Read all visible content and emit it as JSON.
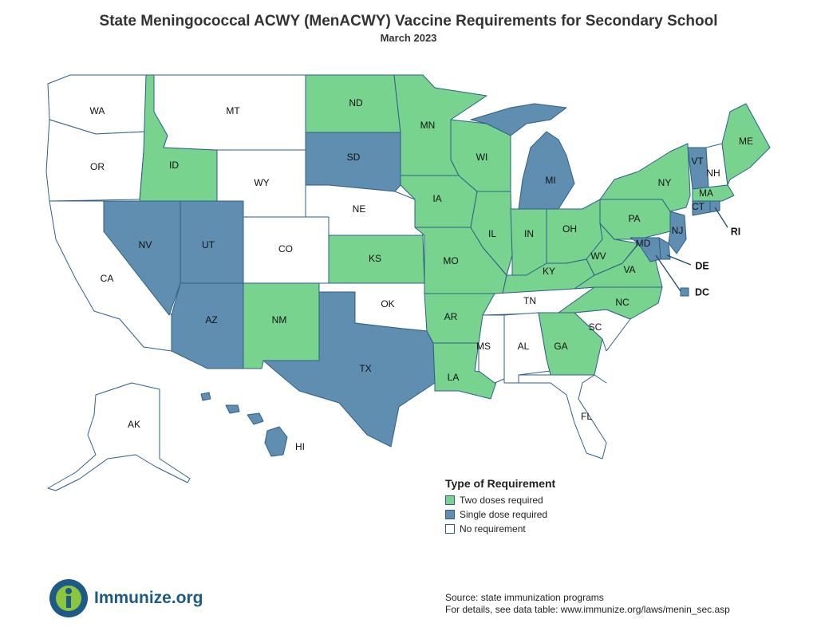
{
  "title": "State Meningococcal ACWY (MenACWY) Vaccine Requirements for Secondary School",
  "subtitle": "March 2023",
  "colors": {
    "two_doses": "#77d38e",
    "single_dose": "#5f8eb0",
    "none": "#ffffff",
    "border": "#2f5f8a"
  },
  "legend": {
    "title": "Type of Requirement",
    "items": [
      {
        "label": "Two doses required",
        "category": "two_doses"
      },
      {
        "label": "Single dose required",
        "category": "single_dose"
      },
      {
        "label": "No requirement",
        "category": "none"
      }
    ]
  },
  "states": [
    {
      "abbr": "WA",
      "category": "none"
    },
    {
      "abbr": "OR",
      "category": "none"
    },
    {
      "abbr": "CA",
      "category": "none"
    },
    {
      "abbr": "ID",
      "category": "two_doses"
    },
    {
      "abbr": "NV",
      "category": "single_dose"
    },
    {
      "abbr": "MT",
      "category": "none"
    },
    {
      "abbr": "WY",
      "category": "none"
    },
    {
      "abbr": "UT",
      "category": "single_dose"
    },
    {
      "abbr": "AZ",
      "category": "single_dose"
    },
    {
      "abbr": "CO",
      "category": "none"
    },
    {
      "abbr": "NM",
      "category": "two_doses"
    },
    {
      "abbr": "ND",
      "category": "two_doses"
    },
    {
      "abbr": "SD",
      "category": "single_dose"
    },
    {
      "abbr": "NE",
      "category": "none"
    },
    {
      "abbr": "KS",
      "category": "two_doses"
    },
    {
      "abbr": "OK",
      "category": "none"
    },
    {
      "abbr": "TX",
      "category": "single_dose"
    },
    {
      "abbr": "MN",
      "category": "two_doses"
    },
    {
      "abbr": "IA",
      "category": "two_doses"
    },
    {
      "abbr": "MO",
      "category": "two_doses"
    },
    {
      "abbr": "AR",
      "category": "two_doses"
    },
    {
      "abbr": "LA",
      "category": "two_doses"
    },
    {
      "abbr": "WI",
      "category": "two_doses"
    },
    {
      "abbr": "IL",
      "category": "two_doses"
    },
    {
      "abbr": "MI",
      "category": "single_dose"
    },
    {
      "abbr": "IN",
      "category": "two_doses"
    },
    {
      "abbr": "OH",
      "category": "two_doses"
    },
    {
      "abbr": "KY",
      "category": "two_doses"
    },
    {
      "abbr": "TN",
      "category": "none"
    },
    {
      "abbr": "MS",
      "category": "none"
    },
    {
      "abbr": "AL",
      "category": "none"
    },
    {
      "abbr": "GA",
      "category": "two_doses"
    },
    {
      "abbr": "FL",
      "category": "none"
    },
    {
      "abbr": "SC",
      "category": "none"
    },
    {
      "abbr": "NC",
      "category": "two_doses"
    },
    {
      "abbr": "VA",
      "category": "two_doses"
    },
    {
      "abbr": "WV",
      "category": "two_doses"
    },
    {
      "abbr": "PA",
      "category": "two_doses"
    },
    {
      "abbr": "NY",
      "category": "two_doses"
    },
    {
      "abbr": "VT",
      "category": "single_dose"
    },
    {
      "abbr": "NH",
      "category": "none"
    },
    {
      "abbr": "ME",
      "category": "two_doses"
    },
    {
      "abbr": "MA",
      "category": "two_doses"
    },
    {
      "abbr": "CT",
      "category": "single_dose"
    },
    {
      "abbr": "RI",
      "category": "single_dose"
    },
    {
      "abbr": "NJ",
      "category": "single_dose"
    },
    {
      "abbr": "DE",
      "category": "single_dose"
    },
    {
      "abbr": "MD",
      "category": "single_dose"
    },
    {
      "abbr": "DC",
      "category": "single_dose"
    },
    {
      "abbr": "AK",
      "category": "none"
    },
    {
      "abbr": "HI",
      "category": "single_dose"
    }
  ],
  "logo_text": "Immunize.org",
  "source_line1": "Source: state immunization programs",
  "source_line2": "For details, see data table: www.immunize.org/laws/menin_sec.asp"
}
